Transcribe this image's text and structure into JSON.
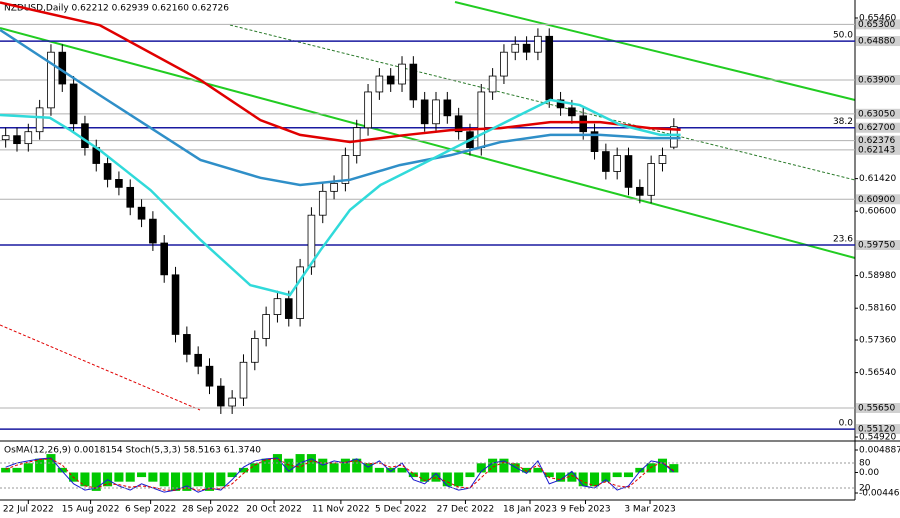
{
  "chart_data": {
    "type": "candlestick",
    "header": "NZDUSD,Daily  0.62212 0.62939 0.62160 0.62726",
    "xlim": [
      -0.5,
      75
    ],
    "xticks": [
      {
        "value": 2,
        "label": "22 Jul 2022"
      },
      {
        "value": 7.5,
        "label": "15 Aug 2022"
      },
      {
        "value": 12.8,
        "label": "6 Sep 2022"
      },
      {
        "value": 18.1,
        "label": "28 Sep 2022"
      },
      {
        "value": 23.7,
        "label": "20 Oct 2022"
      },
      {
        "value": 29.6,
        "label": "11 Nov 2022"
      },
      {
        "value": 34.9,
        "label": "5 Dec 2022"
      },
      {
        "value": 40.6,
        "label": "27 Dec 2022"
      },
      {
        "value": 46.3,
        "label": "18 Jan 2023"
      },
      {
        "value": 51.2,
        "label": "9 Feb 2023"
      },
      {
        "value": 56.9,
        "label": "3 Mar 2023"
      }
    ],
    "ylim": [
      0.54845,
      0.65913
    ],
    "yticks": [
      {
        "value": 0.6546,
        "label": "0.65460"
      },
      {
        "value": 0.6142,
        "label": "0.61420"
      },
      {
        "value": 0.606,
        "label": "0.60600"
      },
      {
        "value": 0.5898,
        "label": "0.58980"
      },
      {
        "value": 0.5816,
        "label": "0.58160"
      },
      {
        "value": 0.5736,
        "label": "0.57360"
      },
      {
        "value": 0.5654,
        "label": "0.56540"
      },
      {
        "value": 0.5492,
        "label": "0.54920"
      }
    ],
    "level_ticks": [
      {
        "value": 0.653,
        "label": "0.65300"
      },
      {
        "value": 0.6488,
        "label": "0.64880"
      },
      {
        "value": 0.639,
        "label": "0.63900"
      },
      {
        "value": 0.6305,
        "label": "0.63050"
      },
      {
        "value": 0.627,
        "label": "0.62700"
      },
      {
        "value": 0.62376,
        "label": "0.62376"
      },
      {
        "value": 0.62143,
        "label": "0.62143"
      },
      {
        "value": 0.609,
        "label": "0.60900"
      },
      {
        "value": 0.5975,
        "label": "0.59750"
      },
      {
        "value": 0.5565,
        "label": "0.55650"
      },
      {
        "value": 0.5512,
        "label": "0.55120"
      }
    ],
    "fib_levels": [
      {
        "value": 0.6488,
        "label": "50.0"
      },
      {
        "value": 0.627,
        "label": "38.2"
      },
      {
        "value": 0.5975,
        "label": "23.6"
      },
      {
        "value": 0.5512,
        "label": "0.0"
      }
    ],
    "fib_color": "#1a1aa0",
    "open": [
      0.624,
      0.625,
      0.623,
      0.626,
      0.632,
      0.646,
      0.638,
      0.628,
      0.622,
      0.618,
      0.614,
      0.612,
      0.607,
      0.604,
      0.598,
      0.59,
      0.575,
      0.57,
      0.567,
      0.562,
      0.557,
      0.559,
      0.568,
      0.574,
      0.58,
      0.584,
      0.579,
      0.592,
      0.605,
      0.611,
      0.613,
      0.62,
      0.627,
      0.636,
      0.64,
      0.638,
      0.643,
      0.634,
      0.628,
      0.634,
      0.63,
      0.626,
      0.622,
      0.636,
      0.64,
      0.646,
      0.648,
      0.646,
      0.65,
      0.634,
      0.632,
      0.63,
      0.626,
      0.621,
      0.616,
      0.62,
      0.612,
      0.61,
      0.618,
      0.62212
    ],
    "high": [
      0.627,
      0.627,
      0.628,
      0.634,
      0.648,
      0.648,
      0.64,
      0.63,
      0.624,
      0.62,
      0.616,
      0.614,
      0.609,
      0.606,
      0.6,
      0.592,
      0.577,
      0.572,
      0.569,
      0.564,
      0.561,
      0.57,
      0.576,
      0.582,
      0.586,
      0.586,
      0.594,
      0.607,
      0.613,
      0.615,
      0.622,
      0.629,
      0.638,
      0.642,
      0.642,
      0.645,
      0.645,
      0.636,
      0.636,
      0.636,
      0.632,
      0.628,
      0.638,
      0.642,
      0.648,
      0.65,
      0.65,
      0.652,
      0.652,
      0.636,
      0.634,
      0.632,
      0.628,
      0.623,
      0.622,
      0.622,
      0.614,
      0.62,
      0.622,
      0.62939
    ],
    "low": [
      0.622,
      0.621,
      0.621,
      0.624,
      0.63,
      0.636,
      0.626,
      0.62,
      0.616,
      0.612,
      0.61,
      0.605,
      0.602,
      0.596,
      0.588,
      0.573,
      0.568,
      0.565,
      0.56,
      0.555,
      0.555,
      0.557,
      0.566,
      0.572,
      0.578,
      0.577,
      0.577,
      0.59,
      0.603,
      0.609,
      0.611,
      0.618,
      0.625,
      0.634,
      0.636,
      0.636,
      0.632,
      0.626,
      0.626,
      0.628,
      0.624,
      0.62,
      0.62,
      0.634,
      0.638,
      0.644,
      0.644,
      0.644,
      0.632,
      0.63,
      0.628,
      0.624,
      0.619,
      0.614,
      0.614,
      0.61,
      0.608,
      0.608,
      0.616,
      0.6216
    ],
    "close": [
      0.625,
      0.623,
      0.626,
      0.632,
      0.646,
      0.638,
      0.628,
      0.622,
      0.618,
      0.614,
      0.612,
      0.607,
      0.604,
      0.598,
      0.59,
      0.575,
      0.57,
      0.567,
      0.562,
      0.557,
      0.559,
      0.568,
      0.574,
      0.58,
      0.584,
      0.579,
      0.592,
      0.605,
      0.611,
      0.613,
      0.62,
      0.627,
      0.636,
      0.64,
      0.638,
      0.643,
      0.634,
      0.628,
      0.634,
      0.63,
      0.626,
      0.622,
      0.636,
      0.64,
      0.646,
      0.648,
      0.646,
      0.65,
      0.634,
      0.632,
      0.63,
      0.626,
      0.621,
      0.616,
      0.62,
      0.612,
      0.61,
      0.618,
      0.62,
      0.62726
    ],
    "series": [
      {
        "color": "#e00000",
        "x": [
          -0.5,
          8.3,
          17.2,
          22.5,
          26,
          30.4,
          34.8,
          39.3,
          43.7,
          48.1,
          52.5,
          56.9,
          59.6
        ],
        "values": [
          0.6585,
          0.6528,
          0.639,
          0.6289,
          0.6252,
          0.6234,
          0.625,
          0.6264,
          0.6269,
          0.6284,
          0.6284,
          0.6269,
          0.6265
        ]
      },
      {
        "color": "#2f8fc8",
        "x": [
          -0.5,
          8.3,
          17.2,
          22.5,
          26,
          30.4,
          34.8,
          39.3,
          43.7,
          48.1,
          52.5,
          56.9,
          59.6
        ],
        "values": [
          0.6516,
          0.6352,
          0.6189,
          0.6144,
          0.6126,
          0.6139,
          0.6176,
          0.6201,
          0.6234,
          0.6252,
          0.6252,
          0.6244,
          0.6244
        ]
      },
      {
        "color": "#30dada",
        "x": [
          -0.5,
          3.9,
          5.7,
          8.3,
          12.8,
          17.2,
          21.6,
          25.1,
          27.8,
          30.4,
          33.1,
          36.6,
          41,
          45.4,
          48.1,
          50.7,
          54.3,
          57.8,
          59.6
        ],
        "values": [
          0.6302,
          0.6295,
          0.6264,
          0.6214,
          0.6113,
          0.5988,
          0.5874,
          0.5849,
          0.5962,
          0.6063,
          0.6126,
          0.6176,
          0.6239,
          0.6302,
          0.634,
          0.6327,
          0.6277,
          0.6252,
          0.6252
        ]
      }
    ],
    "candle_up_color": "#ffffff",
    "candle_down_color": "#000000",
    "indicator": {
      "label": "OsMA(12,26,9) 0.0018154 Stoch(5,3,3) 58.5163 61.3740",
      "ylim": [
        -0.005982,
        0.006409
      ],
      "yticks": [
        0.0048877,
        {
          "value": 0,
          "label": "0.00"
        },
        {
          "value": -0.00446,
          "label": "-0.004460"
        }
      ],
      "y2lim": [
        -8.8,
        128
      ],
      "y2ticks": [
        80,
        20
      ],
      "osma_color": "#00c800",
      "osma": [
        0.001,
        0.001,
        0.002,
        0.003,
        0.004,
        0.001,
        -0.002,
        -0.003,
        -0.004,
        -0.003,
        -0.002,
        -0.002,
        -0.001,
        -0.002,
        -0.003,
        -0.004,
        -0.004,
        -0.003,
        -0.004,
        -0.003,
        -0.001,
        0.001,
        0.002,
        0.003,
        0.004,
        0.003,
        0.004,
        0.004,
        0.003,
        0.002,
        0.003,
        0.003,
        0.002,
        0.001,
        0.001,
        0.001,
        -0.001,
        -0.002,
        -0.002,
        -0.003,
        -0.003,
        -0.001,
        0.002,
        0.003,
        0.003,
        0.002,
        0.001,
        0.001,
        -0.001,
        -0.002,
        -0.002,
        -0.003,
        -0.003,
        -0.002,
        -0.001,
        -0.001,
        0.001,
        0.002,
        0.003,
        0.0018154
      ],
      "stoch": [
        {
          "color": "#1a1ad0",
          "values": [
            70,
            80,
            85,
            90,
            92,
            60,
            30,
            15,
            20,
            40,
            25,
            15,
            30,
            20,
            10,
            15,
            25,
            10,
            20,
            15,
            40,
            70,
            85,
            90,
            92,
            60,
            80,
            90,
            75,
            85,
            80,
            90,
            70,
            85,
            60,
            80,
            40,
            30,
            55,
            25,
            15,
            20,
            60,
            80,
            85,
            70,
            55,
            85,
            30,
            40,
            60,
            25,
            20,
            40,
            15,
            25,
            60,
            85,
            80,
            58.5163
          ]
        },
        {
          "color": "#e00000",
          "values": [
            65,
            75,
            82,
            88,
            90,
            75,
            45,
            25,
            20,
            30,
            28,
            22,
            25,
            22,
            15,
            15,
            20,
            15,
            18,
            18,
            30,
            55,
            75,
            88,
            90,
            75,
            70,
            85,
            80,
            80,
            82,
            85,
            78,
            80,
            70,
            75,
            55,
            38,
            45,
            35,
            22,
            20,
            45,
            70,
            82,
            78,
            60,
            75,
            45,
            40,
            50,
            35,
            25,
            35,
            25,
            22,
            45,
            70,
            82,
            61.374
          ]
        }
      ]
    }
  }
}
